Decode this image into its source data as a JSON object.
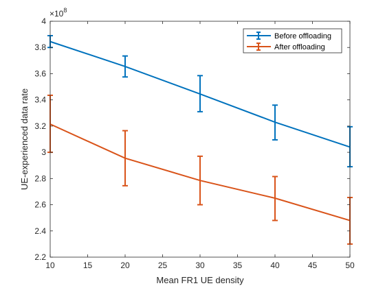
{
  "chart_data": {
    "type": "line",
    "xlabel": "Mean FR1 UE density",
    "ylabel": "UE-experienced data rate",
    "y_exponent_label": "×10",
    "y_exponent_power": "8",
    "y_scale": 100000000,
    "xlim": [
      10,
      50
    ],
    "ylim": [
      2.2,
      4.0
    ],
    "x_ticks": [
      10,
      15,
      20,
      25,
      30,
      35,
      40,
      45,
      50
    ],
    "y_ticks": [
      2.2,
      2.4,
      2.6,
      2.8,
      3.0,
      3.2,
      3.4,
      3.6,
      3.8,
      4.0
    ],
    "y_tick_labels": [
      "2.2",
      "2.4",
      "2.6",
      "2.8",
      "3",
      "3.2",
      "3.4",
      "3.6",
      "3.8",
      "4"
    ],
    "grid": false,
    "legend_position": "top-right",
    "x": [
      10,
      20,
      30,
      40,
      50
    ],
    "series": [
      {
        "name": "Before offloading",
        "color": "#0072BD",
        "values": [
          3.845,
          3.655,
          3.445,
          3.23,
          3.04
        ],
        "err_low": [
          3.8,
          3.575,
          3.31,
          3.095,
          2.89
        ],
        "err_high": [
          3.89,
          3.735,
          3.585,
          3.36,
          3.195
        ]
      },
      {
        "name": "After offloading",
        "color": "#D95319",
        "values": [
          3.215,
          2.955,
          2.785,
          2.65,
          2.48
        ],
        "err_low": [
          3.0,
          2.745,
          2.6,
          2.48,
          2.3
        ],
        "err_high": [
          3.435,
          3.165,
          2.97,
          2.815,
          2.655
        ]
      }
    ]
  }
}
